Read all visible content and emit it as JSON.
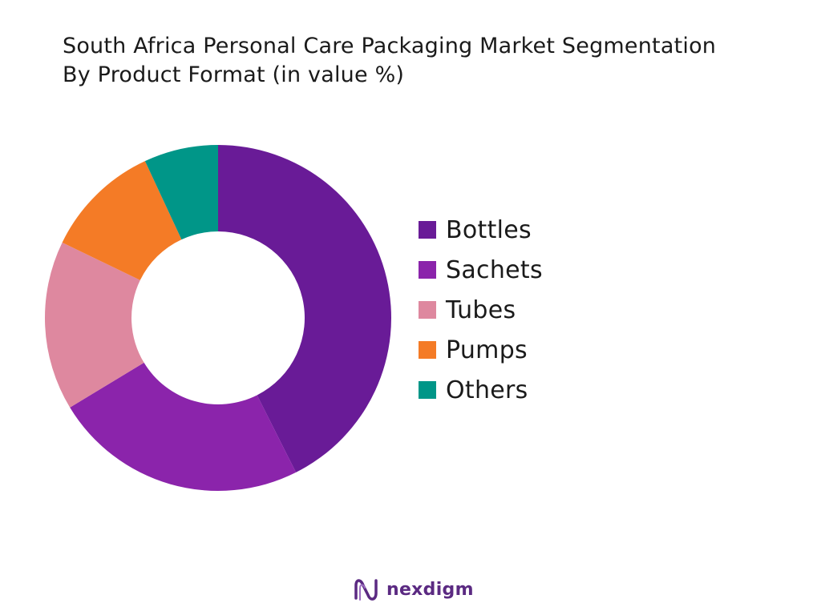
{
  "chart_data": {
    "type": "pie",
    "title_line1": "South Africa Personal Care Packaging Market Segmentation",
    "title_line2": "By Product Format (in value %)",
    "donut": true,
    "legend_position": "right",
    "categories": [
      "Bottles",
      "Sachets",
      "Tubes",
      "Pumps",
      "Others"
    ],
    "values": [
      43,
      24,
      16,
      11,
      7
    ],
    "colors": [
      "#691b97",
      "#8b24ab",
      "#de889f",
      "#f47b26",
      "#009688"
    ]
  },
  "logo": {
    "text": "nexdigm",
    "color": "#5b2a82"
  }
}
